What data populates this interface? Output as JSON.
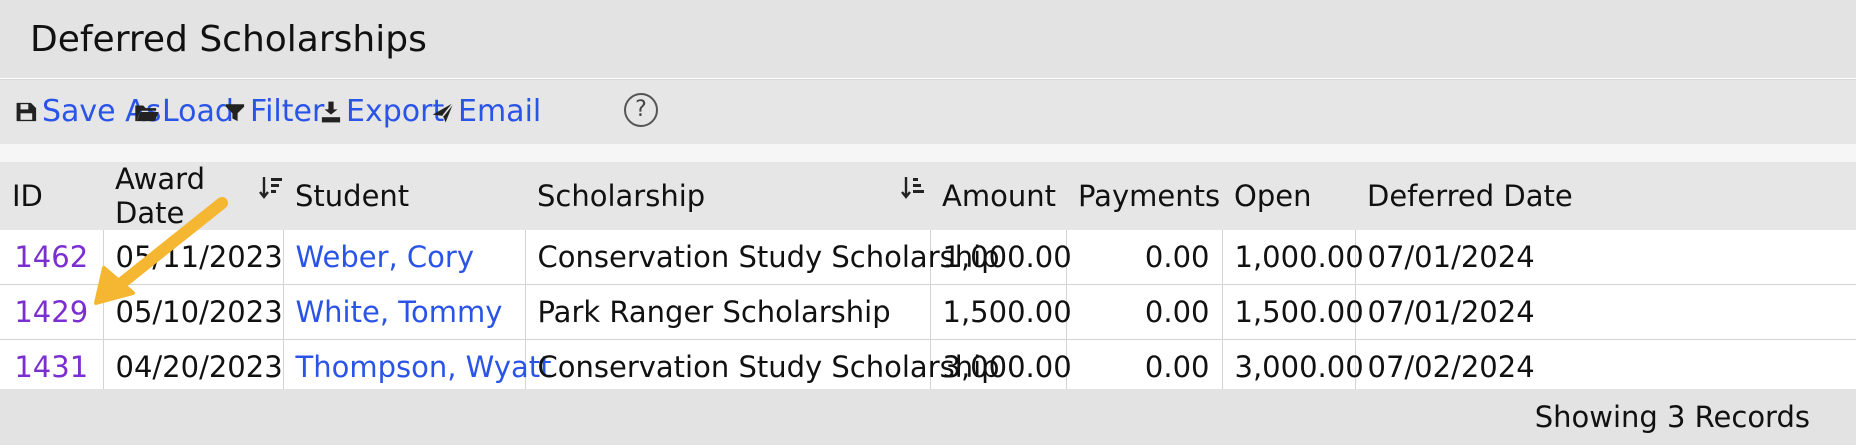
{
  "page": {
    "title": "Deferred Scholarships"
  },
  "toolbar": {
    "items": [
      {
        "label": "Save As",
        "icon": "save-icon"
      },
      {
        "label": "Load",
        "icon": "folder-open-icon"
      },
      {
        "label": "Filter",
        "icon": "filter-icon"
      },
      {
        "label": "Export",
        "icon": "export-icon"
      },
      {
        "label": "Email",
        "icon": "send-icon"
      }
    ],
    "help": "?"
  },
  "table": {
    "columns": [
      "ID",
      "Award Date",
      "Student",
      "Scholarship",
      "Amount",
      "Payments",
      "Open",
      "Deferred Date"
    ],
    "rows": [
      {
        "id": "1462",
        "award_date": "05/11/2023",
        "student": "Weber, Cory",
        "scholarship": "Conservation Study Scholarship",
        "amount": "1,000.00",
        "payments": "0.00",
        "open": "1,000.00",
        "deferred_date": "07/01/2024"
      },
      {
        "id": "1429",
        "award_date": "05/10/2023",
        "student": "White, Tommy",
        "scholarship": "Park Ranger Scholarship",
        "amount": "1,500.00",
        "payments": "0.00",
        "open": "1,500.00",
        "deferred_date": "07/01/2024"
      },
      {
        "id": "1431",
        "award_date": "04/20/2023",
        "student": "Thompson, Wyatt",
        "scholarship": "Conservation Study Scholarship",
        "amount": "3,000.00",
        "payments": "0.00",
        "open": "3,000.00",
        "deferred_date": "07/02/2024"
      }
    ]
  },
  "footer": {
    "count": "Showing 3 Records"
  },
  "colors": {
    "link": "#2a54e8",
    "visited_link": "#7b2fd0",
    "header_bg": "#e6e6e6",
    "annotation_arrow": "#f5b731"
  }
}
